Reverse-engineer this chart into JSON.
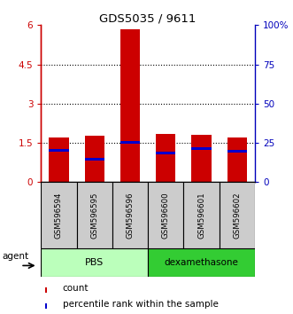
{
  "title": "GDS5035 / 9611",
  "samples": [
    "GSM596594",
    "GSM596595",
    "GSM596596",
    "GSM596600",
    "GSM596601",
    "GSM596602"
  ],
  "count_values": [
    1.72,
    1.78,
    5.85,
    1.85,
    1.82,
    1.72
  ],
  "percentile_values": [
    1.22,
    0.88,
    1.52,
    1.12,
    1.28,
    1.18
  ],
  "bar_color": "#cc0000",
  "marker_color": "#0000cc",
  "left_yticks": [
    0,
    1.5,
    3,
    4.5,
    6
  ],
  "left_yticklabels": [
    "0",
    "1.5",
    "3",
    "4.5",
    "6"
  ],
  "right_yticks": [
    0,
    25,
    50,
    75,
    100
  ],
  "right_yticklabels": [
    "0",
    "25",
    "50",
    "75",
    "100%"
  ],
  "ylim": [
    0,
    6
  ],
  "gridlines": [
    1.5,
    3.0,
    4.5
  ],
  "left_axis_color": "#cc0000",
  "right_axis_color": "#0000bb",
  "bar_width": 0.55,
  "pbs_color": "#bbffbb",
  "dex_color": "#33cc33",
  "gray_color": "#cccccc",
  "agent_label": "agent",
  "legend_count_label": "count",
  "legend_percentile_label": "percentile rank within the sample",
  "title_fontsize": 9.5
}
